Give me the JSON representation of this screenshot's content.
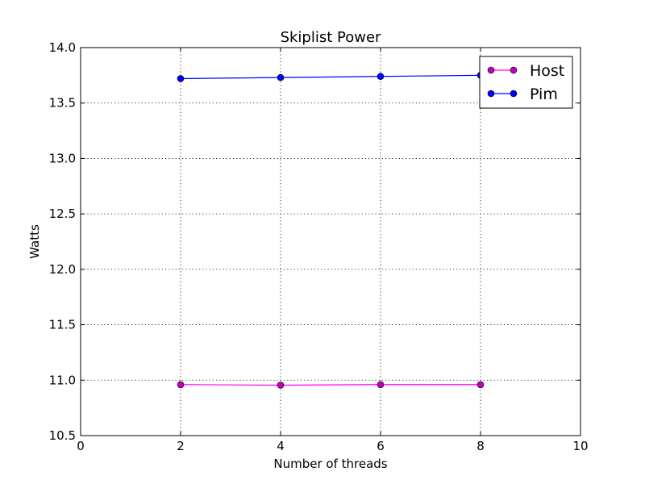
{
  "chart_data": {
    "type": "line",
    "title": "Skiplist Power",
    "xlabel": "Number of threads",
    "ylabel": "Watts",
    "xlim": [
      0,
      10
    ],
    "ylim": [
      10.5,
      14.0
    ],
    "x_ticks": [
      "0",
      "2",
      "4",
      "6",
      "8",
      "10"
    ],
    "y_ticks": [
      "10.5",
      "11.0",
      "11.5",
      "12.0",
      "12.5",
      "13.0",
      "13.5",
      "14.0"
    ],
    "grid": true,
    "legend_position": "top-right",
    "series": [
      {
        "name": "Host",
        "color": "#ff00ff",
        "marker_color": "#bf00bf",
        "x": [
          2,
          4,
          6,
          8
        ],
        "y": [
          10.96,
          10.955,
          10.96,
          10.96
        ]
      },
      {
        "name": "Pim",
        "color": "#0000ff",
        "marker_color": "#0000ff",
        "x": [
          2,
          4,
          6,
          8
        ],
        "y": [
          13.72,
          13.73,
          13.74,
          13.75
        ]
      }
    ]
  }
}
